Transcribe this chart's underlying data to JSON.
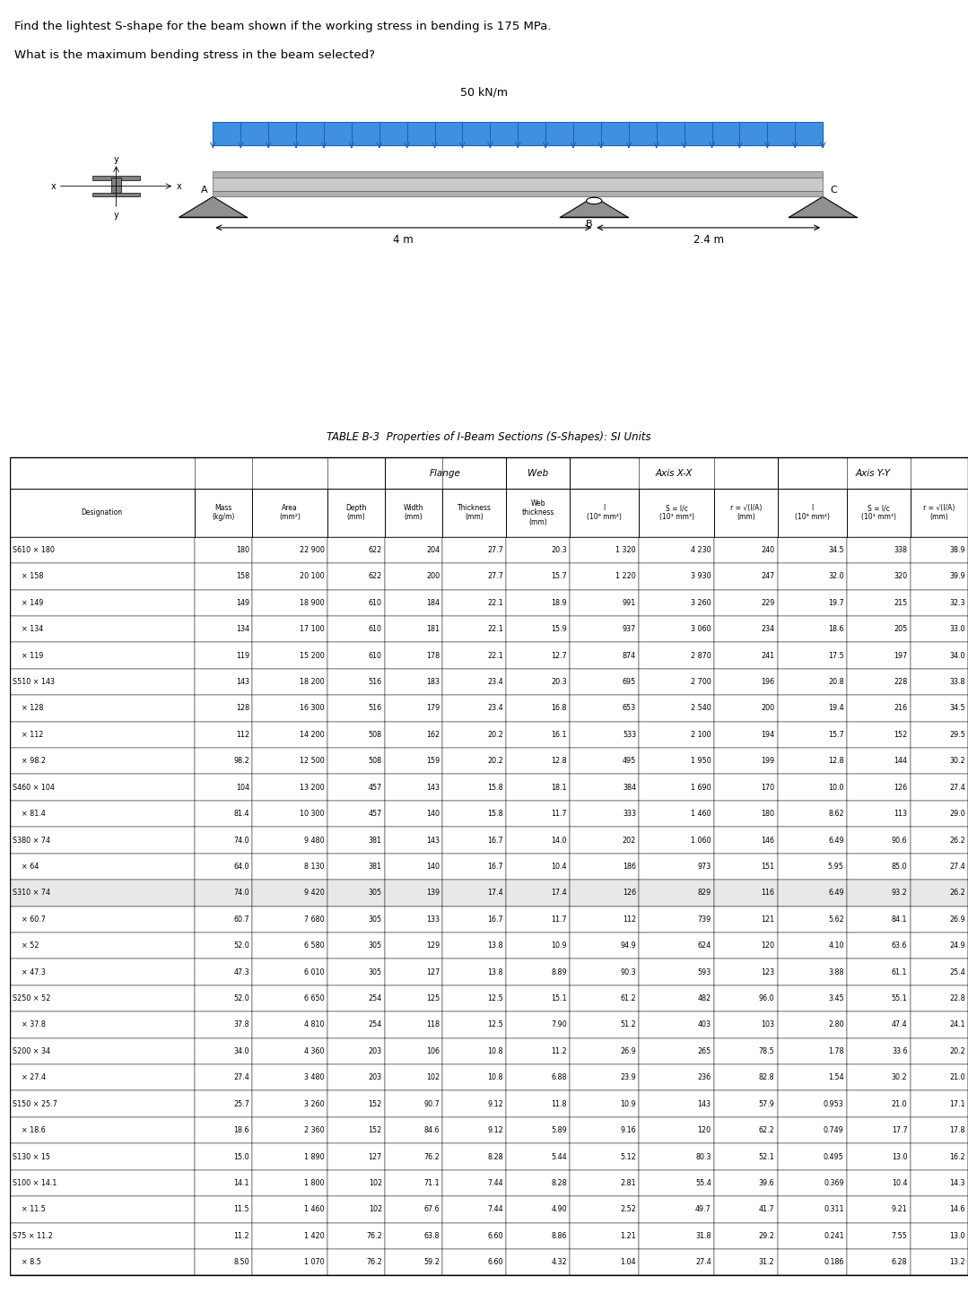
{
  "title_line1": "Find the lightest S-shape for the beam shown if the working stress in bending is 175 MPa.",
  "title_line2": "What is the maximum bending stress in the beam selected?",
  "load_label": "50 kN/m",
  "dim1": "4 m",
  "dim2": "2.4 m",
  "point_B": "B",
  "table_title": "TABLE B-3  Properties of I-Beam Sections (S-Shapes): SI Units",
  "columns": [
    "Designation",
    "Mass\n(kg/m)",
    "Area\n(mm²)",
    "Depth\n(mm)",
    "Width\n(mm)",
    "Thickness\n(mm)",
    "Web\nthickness\n(mm)",
    "I\n(10⁶ mm⁴)",
    "S = I/c\n(10³ mm³)",
    "r = √(I/A)\n(mm)",
    "I\n(10⁶ mm⁴)",
    "S = I/c\n(10³ mm³)",
    "r = √(I/A)\n(mm)"
  ],
  "col_groups": [
    {
      "label": "",
      "span": 4
    },
    {
      "label": "Flange",
      "span": 2
    },
    {
      "label": "Web",
      "span": 1
    },
    {
      "label": "Axis X-X",
      "span": 3
    },
    {
      "label": "Axis Y-Y",
      "span": 3
    }
  ],
  "rows": [
    [
      "S610 × 180",
      "180",
      "22 900",
      "622",
      "204",
      "27.7",
      "20.3",
      "1 320",
      "4 230",
      "240",
      "34.5",
      "338",
      "38.9"
    ],
    [
      "× 158",
      "158",
      "20 100",
      "622",
      "200",
      "27.7",
      "15.7",
      "1 220",
      "3 930",
      "247",
      "32.0",
      "320",
      "39.9"
    ],
    [
      "× 149",
      "149",
      "18 900",
      "610",
      "184",
      "22.1",
      "18.9",
      "991",
      "3 260",
      "229",
      "19.7",
      "215",
      "32.3"
    ],
    [
      "× 134",
      "134",
      "17 100",
      "610",
      "181",
      "22.1",
      "15.9",
      "937",
      "3 060",
      "234",
      "18.6",
      "205",
      "33.0"
    ],
    [
      "× 119",
      "119",
      "15 200",
      "610",
      "178",
      "22.1",
      "12.7",
      "874",
      "2 870",
      "241",
      "17.5",
      "197",
      "34.0"
    ],
    [
      "S510 × 143",
      "143",
      "18 200",
      "516",
      "183",
      "23.4",
      "20.3",
      "695",
      "2 700",
      "196",
      "20.8",
      "228",
      "33.8"
    ],
    [
      "× 128",
      "128",
      "16 300",
      "516",
      "179",
      "23.4",
      "16.8",
      "653",
      "2 540",
      "200",
      "19.4",
      "216",
      "34.5"
    ],
    [
      "× 112",
      "112",
      "14 200",
      "508",
      "162",
      "20.2",
      "16.1",
      "533",
      "2 100",
      "194",
      "15.7",
      "152",
      "29.5"
    ],
    [
      "× 98.2",
      "98.2",
      "12 500",
      "508",
      "159",
      "20.2",
      "12.8",
      "495",
      "1 950",
      "199",
      "12.8",
      "144",
      "30.2"
    ],
    [
      "S460 × 104",
      "104",
      "13 200",
      "457",
      "143",
      "15.8",
      "18.1",
      "384",
      "1 690",
      "170",
      "10.0",
      "126",
      "27.4"
    ],
    [
      "× 81.4",
      "81.4",
      "10 300",
      "457",
      "140",
      "15.8",
      "11.7",
      "333",
      "1 460",
      "180",
      "8.62",
      "113",
      "29.0"
    ],
    [
      "S380 × 74",
      "74.0",
      "9 480",
      "381",
      "143",
      "16.7",
      "14.0",
      "202",
      "1 060",
      "146",
      "6.49",
      "90.6",
      "26.2"
    ],
    [
      "× 64",
      "64.0",
      "8 130",
      "381",
      "140",
      "16.7",
      "10.4",
      "186",
      "973",
      "151",
      "5.95",
      "85.0",
      "27.4"
    ],
    [
      "S310 × 74",
      "74.0",
      "9 420",
      "305",
      "139",
      "17.4",
      "17.4",
      "126",
      "829",
      "116",
      "6.49",
      "93.2",
      "26.2"
    ],
    [
      "× 60.7",
      "60.7",
      "7 680",
      "305",
      "133",
      "16.7",
      "11.7",
      "112",
      "739",
      "121",
      "5.62",
      "84.1",
      "26.9"
    ],
    [
      "× 52",
      "52.0",
      "6 580",
      "305",
      "129",
      "13.8",
      "10.9",
      "94.9",
      "624",
      "120",
      "4.10",
      "63.6",
      "24.9"
    ],
    [
      "× 47.3",
      "47.3",
      "6 010",
      "305",
      "127",
      "13.8",
      "8.89",
      "90.3",
      "593",
      "123",
      "3.88",
      "61.1",
      "25.4"
    ],
    [
      "S250 × 52",
      "52.0",
      "6 650",
      "254",
      "125",
      "12.5",
      "15.1",
      "61.2",
      "482",
      "96.0",
      "3.45",
      "55.1",
      "22.8"
    ],
    [
      "× 37.8",
      "37.8",
      "4 810",
      "254",
      "118",
      "12.5",
      "7.90",
      "51.2",
      "403",
      "103",
      "2.80",
      "47.4",
      "24.1"
    ],
    [
      "S200 × 34",
      "34.0",
      "4 360",
      "203",
      "106",
      "10.8",
      "11.2",
      "26.9",
      "265",
      "78.5",
      "1.78",
      "33.6",
      "20.2"
    ],
    [
      "× 27.4",
      "27.4",
      "3 480",
      "203",
      "102",
      "10.8",
      "6.88",
      "23.9",
      "236",
      "82.8",
      "1.54",
      "30.2",
      "21.0"
    ],
    [
      "S150 × 25.7",
      "25.7",
      "3 260",
      "152",
      "90.7",
      "9.12",
      "11.8",
      "10.9",
      "143",
      "57.9",
      "0.953",
      "21.0",
      "17.1"
    ],
    [
      "× 18.6",
      "18.6",
      "2 360",
      "152",
      "84.6",
      "9.12",
      "5.89",
      "9.16",
      "120",
      "62.2",
      "0.749",
      "17.7",
      "17.8"
    ],
    [
      "S130 × 15",
      "15.0",
      "1 890",
      "127",
      "76.2",
      "8.28",
      "5.44",
      "5.12",
      "80.3",
      "52.1",
      "0.495",
      "13.0",
      "16.2"
    ],
    [
      "S100 × 14.1",
      "14.1",
      "1 800",
      "102",
      "71.1",
      "7.44",
      "8.28",
      "2.81",
      "55.4",
      "39.6",
      "0.369",
      "10.4",
      "14.3"
    ],
    [
      "× 11.5",
      "11.5",
      "1 460",
      "102",
      "67.6",
      "7.44",
      "4.90",
      "2.52",
      "49.7",
      "41.7",
      "0.311",
      "9.21",
      "14.6"
    ],
    [
      "S75 × 11.2",
      "11.2",
      "1 420",
      "76.2",
      "63.8",
      "6.60",
      "8.86",
      "1.21",
      "31.8",
      "29.2",
      "0.241",
      "7.55",
      "13.0"
    ],
    [
      "× 8.5",
      "8.50",
      "1 070",
      "76.2",
      "59.2",
      "6.60",
      "4.32",
      "1.04",
      "27.4",
      "31.2",
      "0.186",
      "6.28",
      "13.2"
    ]
  ],
  "highlight_row": 13,
  "bg_color": "#ffffff",
  "table_header_color": "#ffffff",
  "text_color": "#000000",
  "axis_xx_cols": [
    "I\n(10⁶ mm⁴)",
    "S = I/c\n(10³ mm³)",
    "r = √(I/A)\n(mm)"
  ],
  "axis_yy_cols": [
    "I\n(10⁶ mm⁴)",
    "S = I/c\n(10³ mm³)",
    "r = √(I/A)\n(mm)"
  ]
}
